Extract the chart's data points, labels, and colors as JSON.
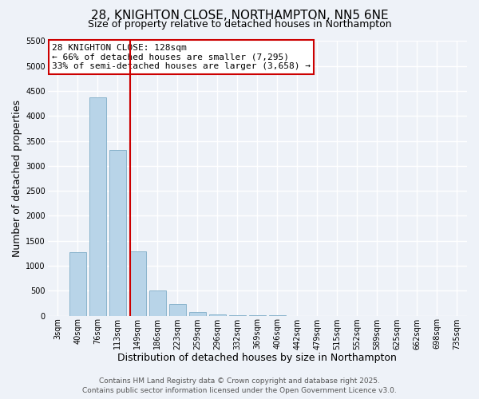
{
  "title": "28, KNIGHTON CLOSE, NORTHAMPTON, NN5 6NE",
  "subtitle": "Size of property relative to detached houses in Northampton",
  "xlabel": "Distribution of detached houses by size in Northampton",
  "ylabel": "Number of detached properties",
  "bar_labels": [
    "3sqm",
    "40sqm",
    "76sqm",
    "113sqm",
    "149sqm",
    "186sqm",
    "223sqm",
    "259sqm",
    "296sqm",
    "332sqm",
    "369sqm",
    "406sqm",
    "442sqm",
    "479sqm",
    "515sqm",
    "552sqm",
    "589sqm",
    "625sqm",
    "662sqm",
    "698sqm",
    "735sqm"
  ],
  "bar_values": [
    0,
    1270,
    4370,
    3320,
    1280,
    500,
    230,
    75,
    20,
    5,
    2,
    1,
    0,
    0,
    0,
    0,
    0,
    0,
    0,
    0,
    0
  ],
  "bar_color": "#b8d4e8",
  "bar_edge_color": "#8ab4cc",
  "vline_x": 3.62,
  "vline_color": "#cc0000",
  "ylim": [
    0,
    5500
  ],
  "yticks": [
    0,
    500,
    1000,
    1500,
    2000,
    2500,
    3000,
    3500,
    4000,
    4500,
    5000,
    5500
  ],
  "annotation_title": "28 KNIGHTON CLOSE: 128sqm",
  "annotation_line1": "← 66% of detached houses are smaller (7,295)",
  "annotation_line2": "33% of semi-detached houses are larger (3,658) →",
  "annotation_box_color": "#ffffff",
  "annotation_box_edge": "#cc0000",
  "footer1": "Contains HM Land Registry data © Crown copyright and database right 2025.",
  "footer2": "Contains public sector information licensed under the Open Government Licence v3.0.",
  "bg_color": "#eef2f8",
  "grid_color": "#ffffff",
  "title_fontsize": 11,
  "subtitle_fontsize": 9,
  "axis_label_fontsize": 9,
  "tick_fontsize": 7,
  "annotation_fontsize": 8,
  "footer_fontsize": 6.5
}
